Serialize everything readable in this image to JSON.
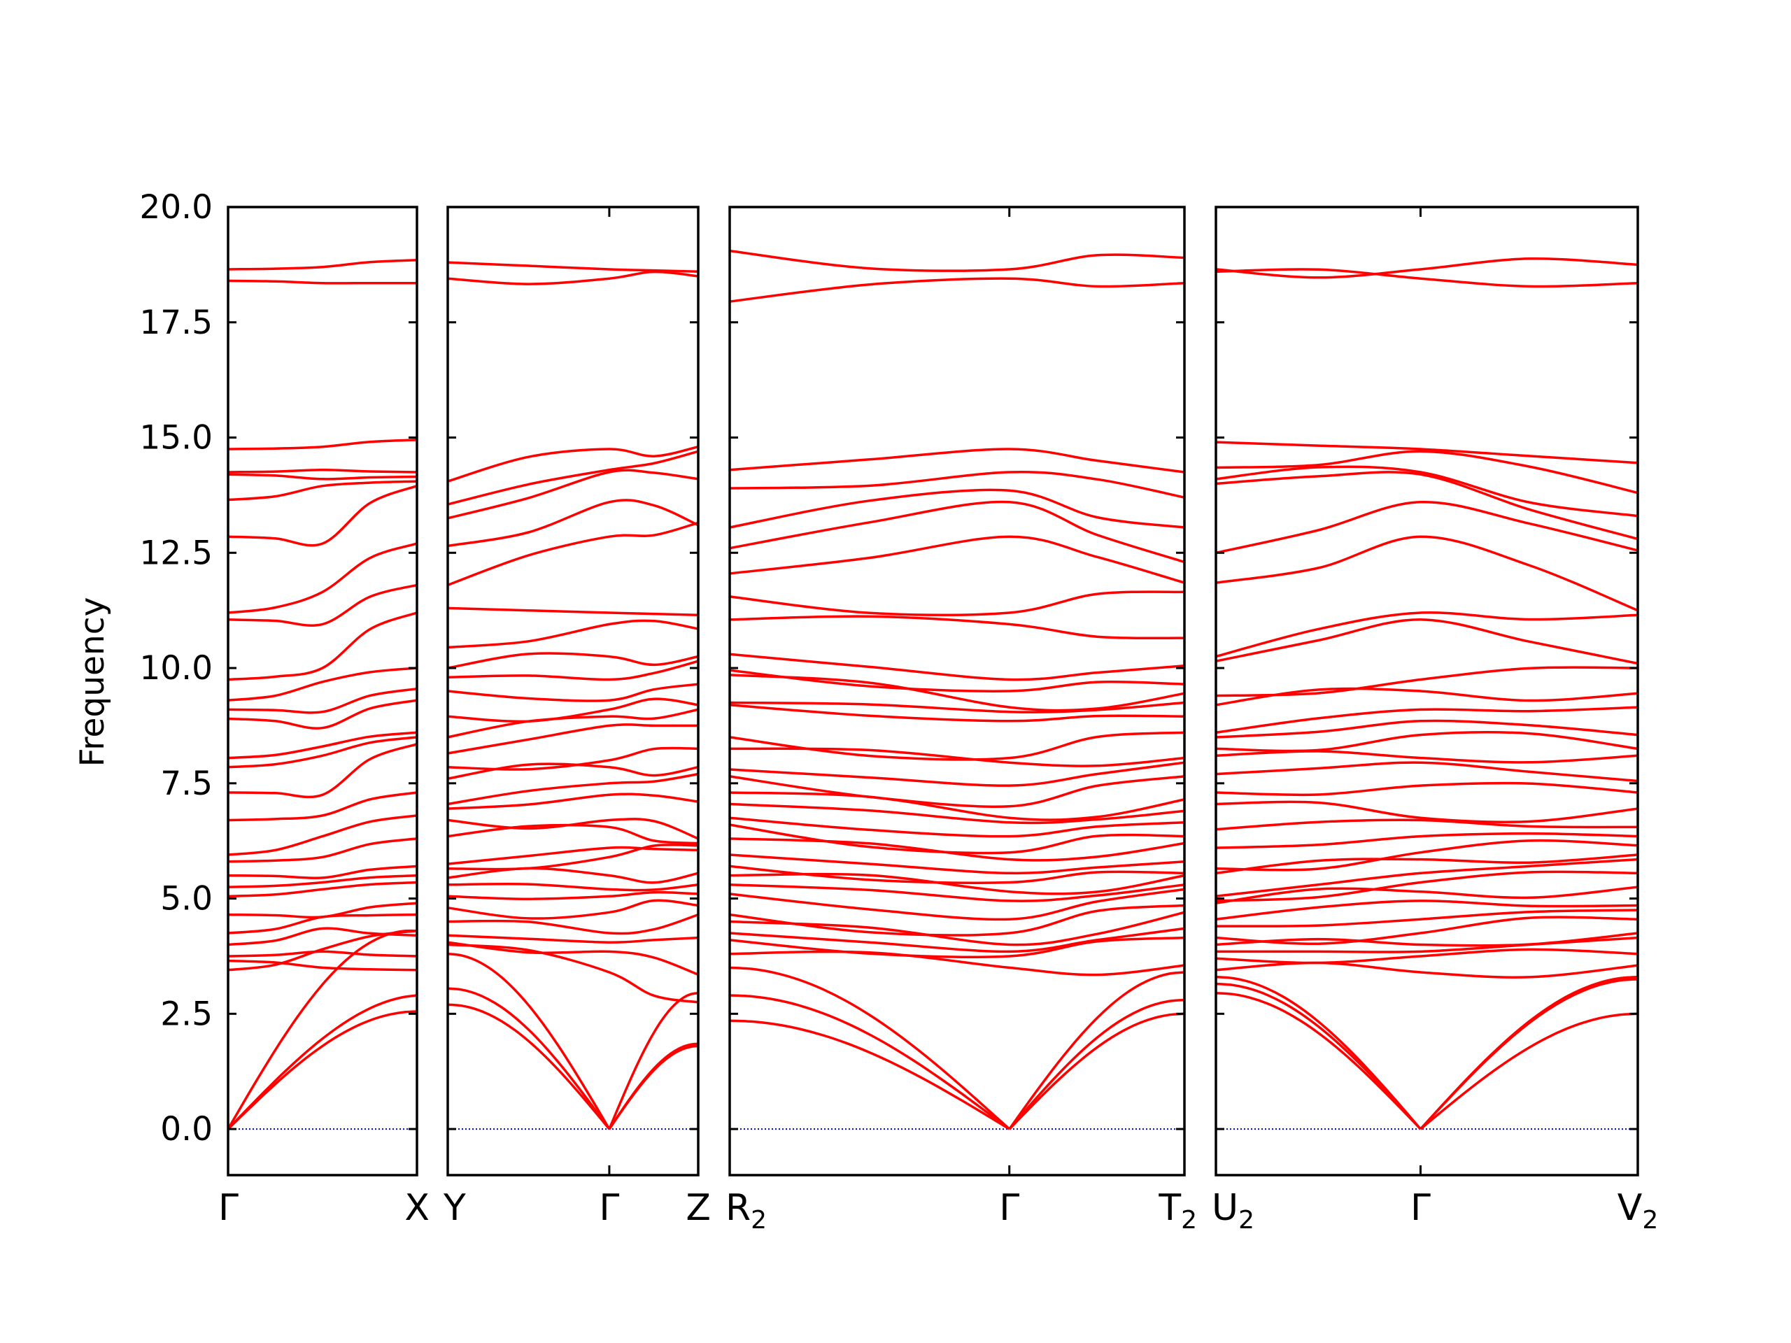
{
  "chart_data": {
    "type": "line",
    "title": "",
    "ylabel": "Frequency",
    "ylim": [
      -1.0,
      20.0
    ],
    "yticks": [
      "0.0",
      "2.5",
      "5.0",
      "7.5",
      "10.0",
      "12.5",
      "15.0",
      "17.5",
      "20.0"
    ],
    "line_color": "#ff0000",
    "zero_line_color": "#0000cc",
    "grid": false,
    "panels": [
      {
        "labels": [
          {
            "text": "Γ",
            "sub": ""
          },
          {
            "text": "X",
            "sub": ""
          }
        ],
        "left": [
          0.0,
          0.0,
          0.0,
          3.45,
          3.65,
          3.75,
          4.0,
          4.25,
          4.65,
          5.05,
          5.25,
          5.5,
          5.8,
          5.95,
          6.7,
          7.3,
          7.85,
          8.05,
          8.9,
          9.1,
          9.3,
          9.75,
          11.05,
          11.2,
          12.85,
          13.65,
          14.2,
          14.25,
          14.75,
          18.4,
          18.65
        ],
        "right": [
          2.55,
          2.9,
          4.3,
          4.3,
          3.45,
          3.75,
          4.2,
          4.65,
          4.9,
          5.35,
          5.5,
          5.7,
          6.3,
          6.8,
          7.3,
          8.35,
          8.5,
          8.6,
          9.3,
          9.55,
          10.0,
          11.2,
          11.8,
          12.7,
          13.95,
          14.05,
          14.15,
          14.25,
          14.95,
          18.35,
          18.85
        ],
        "mid": [
          [
            0.5,
            1.8
          ],
          [
            0.5,
            1.9
          ],
          [
            0.4,
            3.2
          ],
          [
            0.5,
            3.9
          ],
          [
            0.5,
            3.5
          ],
          [
            0.5,
            3.85
          ],
          [
            0.5,
            4.35
          ],
          [
            0.5,
            4.6
          ],
          [
            0.5,
            4.6
          ],
          [
            0.5,
            5.2
          ],
          [
            0.5,
            5.35
          ],
          [
            0.5,
            5.45
          ],
          [
            0.5,
            5.9
          ],
          [
            0.5,
            6.35
          ],
          [
            0.5,
            6.8
          ],
          [
            0.5,
            7.25
          ],
          [
            0.5,
            8.1
          ],
          [
            0.5,
            8.3
          ],
          [
            0.5,
            8.7
          ],
          [
            0.5,
            9.05
          ],
          [
            0.5,
            9.7
          ],
          [
            0.5,
            10.0
          ],
          [
            0.5,
            10.95
          ],
          [
            0.5,
            11.65
          ],
          [
            0.5,
            12.7
          ],
          [
            0.5,
            13.95
          ],
          [
            0.5,
            14.1
          ],
          [
            0.5,
            14.3
          ],
          [
            0.5,
            14.8
          ],
          [
            0.5,
            18.35
          ],
          [
            0.5,
            18.7
          ]
        ]
      },
      {
        "labels": [
          {
            "text": "Y",
            "sub": ""
          },
          {
            "text": "Γ",
            "sub": ""
          },
          {
            "text": "Z",
            "sub": ""
          }
        ],
        "points": [
          [
            2.7,
            3.05,
            3.8,
            4.0,
            4.05,
            4.2,
            4.5,
            4.8,
            5.05,
            5.3,
            5.45,
            5.65,
            5.75,
            6.35,
            6.7,
            6.95,
            7.05,
            7.6,
            7.85,
            8.15,
            8.5,
            8.95,
            9.5,
            9.8,
            10.0,
            10.45,
            11.3,
            11.8,
            12.65,
            13.25,
            13.55,
            14.05,
            18.45,
            18.8
          ],
          [
            0.0,
            0.0,
            0.0,
            3.4,
            3.85,
            4.05,
            4.25,
            4.7,
            5.05,
            5.2,
            5.5,
            5.9,
            6.1,
            6.55,
            6.7,
            7.25,
            7.5,
            7.85,
            8.0,
            8.75,
            8.95,
            9.1,
            9.3,
            9.75,
            10.25,
            10.95,
            11.2,
            12.85,
            13.6,
            14.25,
            14.3,
            14.75,
            18.45,
            18.65
          ],
          [
            1.8,
            1.85,
            2.95,
            2.75,
            3.35,
            4.15,
            4.65,
            4.85,
            5.1,
            5.3,
            5.55,
            6.15,
            6.05,
            6.2,
            6.3,
            7.1,
            7.7,
            7.85,
            8.25,
            8.75,
            9.1,
            9.2,
            9.65,
            10.15,
            10.25,
            10.85,
            11.15,
            13.15,
            13.1,
            14.1,
            14.7,
            14.8,
            18.5,
            18.6
          ]
        ]
      },
      {
        "labels": [
          {
            "text": "R",
            "sub": "2"
          },
          {
            "text": "Γ",
            "sub": ""
          },
          {
            "text": "T",
            "sub": "2"
          }
        ],
        "points": [
          [
            2.35,
            2.9,
            3.5,
            3.8,
            4.1,
            4.25,
            4.5,
            4.65,
            5.1,
            5.3,
            5.5,
            5.7,
            5.95,
            6.3,
            6.6,
            6.75,
            7.05,
            7.3,
            7.65,
            7.8,
            8.25,
            8.5,
            9.2,
            9.25,
            9.85,
            9.95,
            10.3,
            11.05,
            11.55,
            12.05,
            12.6,
            13.05,
            13.9,
            14.3,
            17.95,
            19.05
          ],
          [
            0.0,
            0.0,
            0.0,
            3.5,
            3.75,
            3.85,
            4.0,
            4.25,
            4.55,
            4.95,
            5.15,
            5.35,
            5.55,
            5.85,
            6.0,
            6.35,
            6.65,
            6.75,
            7.0,
            7.45,
            7.95,
            8.05,
            8.85,
            9.05,
            9.15,
            9.5,
            9.75,
            10.95,
            11.2,
            12.85,
            13.6,
            13.85,
            14.25,
            14.75,
            18.45,
            18.65
          ],
          [
            2.5,
            2.8,
            3.4,
            3.55,
            4.15,
            4.35,
            4.7,
            4.85,
            5.2,
            5.3,
            5.5,
            5.55,
            5.8,
            6.2,
            6.35,
            6.65,
            6.9,
            7.15,
            7.65,
            7.95,
            8.05,
            8.6,
            8.95,
            9.25,
            9.45,
            9.65,
            10.05,
            10.65,
            11.65,
            11.85,
            12.3,
            13.05,
            13.7,
            14.25,
            18.35,
            18.9
          ]
        ]
      },
      {
        "labels": [
          {
            "text": "U",
            "sub": "2"
          },
          {
            "text": "Γ",
            "sub": ""
          },
          {
            "text": "V",
            "sub": "2"
          }
        ],
        "points": [
          [
            2.95,
            3.15,
            3.3,
            3.45,
            3.7,
            3.85,
            4.0,
            4.15,
            4.4,
            4.55,
            4.9,
            4.95,
            5.05,
            5.55,
            5.65,
            6.1,
            6.5,
            7.05,
            7.3,
            7.7,
            8.1,
            8.25,
            8.5,
            8.6,
            9.2,
            9.4,
            10.15,
            10.25,
            11.85,
            12.5,
            14.0,
            14.1,
            14.35,
            14.9,
            18.6,
            18.65
          ],
          [
            0.0,
            0.0,
            0.0,
            3.4,
            3.75,
            3.85,
            4.0,
            4.25,
            4.55,
            4.95,
            5.15,
            5.35,
            5.55,
            5.85,
            6.0,
            6.35,
            6.7,
            6.75,
            7.45,
            7.95,
            8.05,
            8.55,
            8.85,
            9.1,
            9.5,
            9.75,
            11.05,
            11.2,
            12.85,
            13.6,
            14.2,
            14.25,
            14.7,
            14.75,
            18.45,
            18.65
          ],
          [
            2.5,
            3.25,
            3.3,
            3.55,
            3.8,
            4.15,
            4.25,
            4.55,
            4.75,
            4.85,
            5.25,
            5.55,
            5.85,
            5.95,
            6.15,
            6.35,
            6.55,
            6.95,
            7.3,
            7.55,
            8.1,
            8.25,
            8.55,
            9.15,
            9.45,
            10.0,
            10.1,
            11.15,
            11.25,
            12.55,
            12.8,
            13.3,
            13.8,
            14.45,
            18.35,
            18.75
          ]
        ]
      }
    ]
  }
}
